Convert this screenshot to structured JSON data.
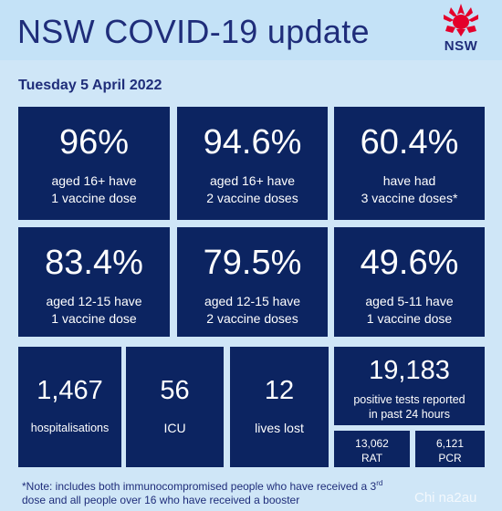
{
  "header": {
    "title": "NSW COVID-19 update",
    "logo_text": "NSW",
    "logo_color": "#e4002b"
  },
  "date": "Tuesday 5 April 2022",
  "vaccination_tiles": [
    {
      "value": "96%",
      "line1": "aged 16+ have",
      "line2": "1 vaccine dose"
    },
    {
      "value": "94.6%",
      "line1": "aged 16+ have",
      "line2": "2 vaccine doses"
    },
    {
      "value": "60.4%",
      "line1": "have had",
      "line2": "3 vaccine doses*"
    },
    {
      "value": "83.4%",
      "line1": "aged 12-15 have",
      "line2": "1 vaccine dose"
    },
    {
      "value": "79.5%",
      "line1": "aged 12-15 have",
      "line2": "2 vaccine doses"
    },
    {
      "value": "49.6%",
      "line1": "aged 5-11 have",
      "line2": "1 vaccine dose"
    }
  ],
  "stats": {
    "hospitalisations": {
      "value": "1,467",
      "label": "hospitalisations"
    },
    "icu": {
      "value": "56",
      "label": "ICU"
    },
    "lives_lost": {
      "value": "12",
      "label": "lives lost"
    },
    "positive_tests": {
      "value": "19,183",
      "line1": "positive tests reported",
      "line2": "in past 24 hours"
    },
    "rat": {
      "value": "13,062",
      "label": "RAT"
    },
    "pcr": {
      "value": "6,121",
      "label": "PCR"
    }
  },
  "note": {
    "part1": "*Note: includes both immunocompromised  people who have received a 3",
    "sup": "rd",
    "part2": "dose and all people over 16 who have received a booster"
  },
  "watermark": "Chi na2au",
  "colors": {
    "tile": "#0c2461",
    "background": "#cfe6f7",
    "title_text": "#1f2d7a"
  }
}
